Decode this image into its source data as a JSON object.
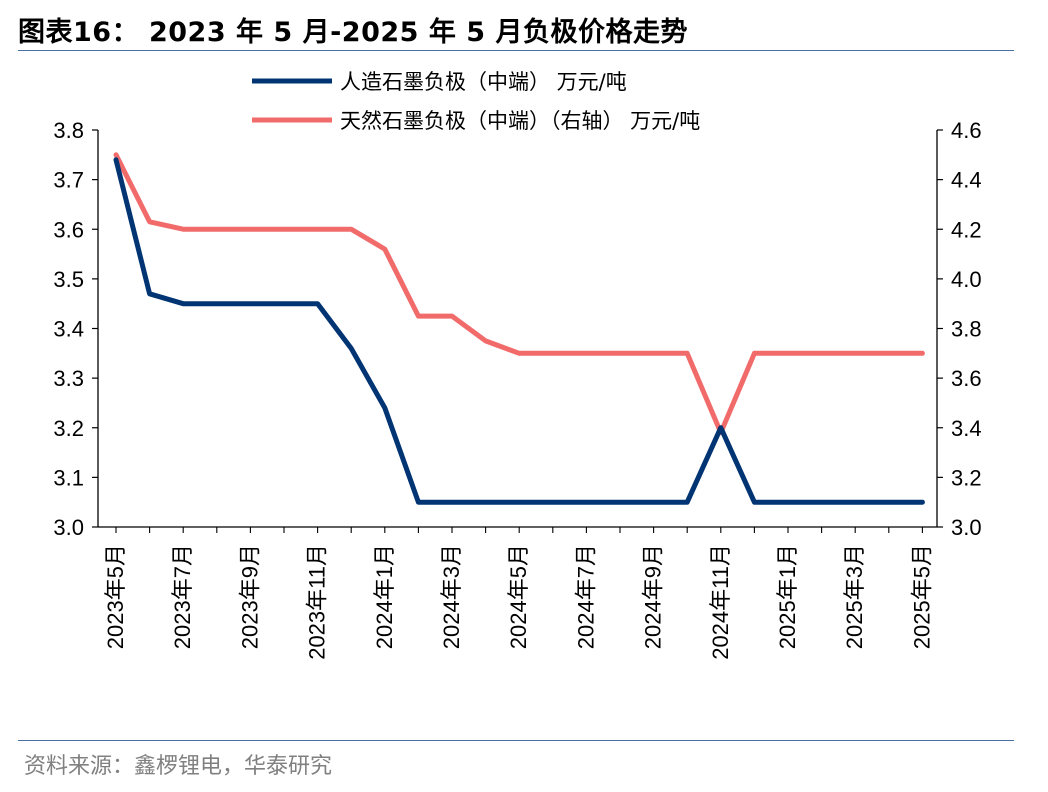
{
  "title": "图表16：  2023 年 5 月-2025 年 5 月负极价格走势",
  "source": "资料来源：鑫椤锂电，华泰研究",
  "colors": {
    "series1": "#003473",
    "series2": "#f26b6b",
    "rule": "#4a6fa5",
    "axis": "#000000"
  },
  "chart_data": {
    "type": "line",
    "legend_position": "top-center",
    "grid": false,
    "x": [
      "2023年5月",
      "2023年6月",
      "2023年7月",
      "2023年8月",
      "2023年9月",
      "2023年10月",
      "2023年11月",
      "2023年12月",
      "2024年1月",
      "2024年2月",
      "2024年3月",
      "2024年4月",
      "2024年5月",
      "2024年6月",
      "2024年7月",
      "2024年8月",
      "2024年9月",
      "2024年10月",
      "2024年11月",
      "2024年12月",
      "2025年1月",
      "2025年2月",
      "2025年3月",
      "2025年4月",
      "2025年5月"
    ],
    "x_tick_labels": [
      "2023年5月",
      "2023年7月",
      "2023年9月",
      "2023年11月",
      "2024年1月",
      "2024年3月",
      "2024年5月",
      "2024年7月",
      "2024年9月",
      "2024年11月",
      "2025年1月",
      "2025年3月",
      "2025年5月"
    ],
    "y_left": {
      "ylim": [
        3.0,
        3.8
      ],
      "ticks": [
        "3.0",
        "3.1",
        "3.2",
        "3.3",
        "3.4",
        "3.5",
        "3.6",
        "3.7",
        "3.8"
      ]
    },
    "y_right": {
      "ylim": [
        3.0,
        4.6
      ],
      "ticks": [
        "3.0",
        "3.2",
        "3.4",
        "3.6",
        "3.8",
        "4.0",
        "4.2",
        "4.4",
        "4.6"
      ]
    },
    "series": [
      {
        "name": "人造石墨负极（中端） 万元/吨",
        "axis": "left",
        "values": [
          3.74,
          3.47,
          3.45,
          3.45,
          3.45,
          3.45,
          3.45,
          3.36,
          3.24,
          3.05,
          3.05,
          3.05,
          3.05,
          3.05,
          3.05,
          3.05,
          3.05,
          3.05,
          3.2,
          3.05,
          3.05,
          3.05,
          3.05,
          3.05,
          3.05
        ]
      },
      {
        "name": "天然石墨负极（中端）（右轴） 万元/吨",
        "axis": "right",
        "values": [
          4.5,
          4.23,
          4.2,
          4.2,
          4.2,
          4.2,
          4.2,
          4.2,
          4.12,
          3.85,
          3.85,
          3.75,
          3.7,
          3.7,
          3.7,
          3.7,
          3.7,
          3.7,
          3.38,
          3.7,
          3.7,
          3.7,
          3.7,
          3.7,
          3.7
        ]
      }
    ]
  }
}
